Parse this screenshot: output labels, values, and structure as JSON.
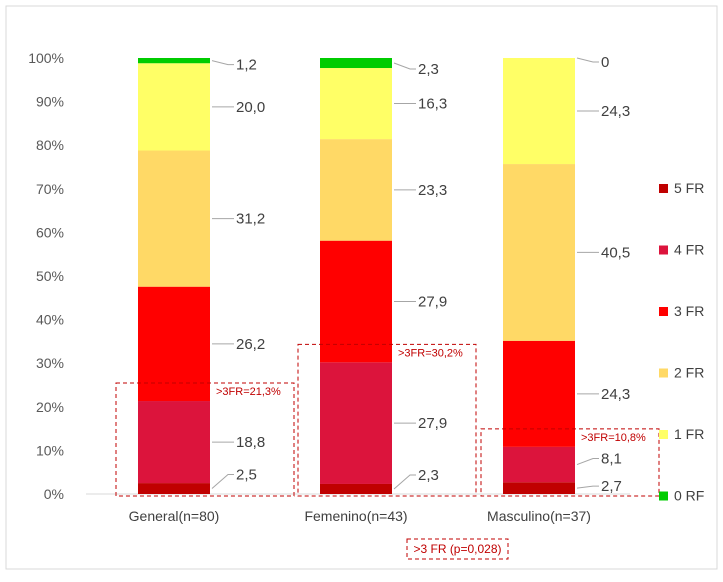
{
  "chart_data": {
    "type": "bar",
    "stacked": true,
    "percent": true,
    "categories": [
      "General(n=80)",
      "Femenino(n=43)",
      "Masculino(n=37)"
    ],
    "y_ticks": [
      "0%",
      "10%",
      "20%",
      "30%",
      "40%",
      "50%",
      "60%",
      "70%",
      "80%",
      "90%",
      "100%"
    ],
    "ylim": [
      0,
      100
    ],
    "grid": false,
    "legend_position": "right",
    "series": [
      {
        "name": "5 FR",
        "color": "#C00000",
        "values": [
          2.5,
          2.3,
          2.7
        ],
        "labels": [
          "2,5",
          "2,3",
          "2,7"
        ]
      },
      {
        "name": "4 FR",
        "color": "#DC143C",
        "values": [
          18.8,
          27.9,
          8.1
        ],
        "labels": [
          "18,8",
          "27,9",
          "8,1"
        ]
      },
      {
        "name": "3 FR",
        "color": "#FF0000",
        "values": [
          26.2,
          27.9,
          24.3
        ],
        "labels": [
          "26,2",
          "27,9",
          "24,3"
        ]
      },
      {
        "name": "2 FR",
        "color": "#FFD966",
        "values": [
          31.2,
          23.3,
          40.5
        ],
        "labels": [
          "31,2",
          "23,3",
          "40,5"
        ]
      },
      {
        "name": "1 FR",
        "color": "#FFFF66",
        "values": [
          20.0,
          16.3,
          24.3
        ],
        "labels": [
          "20,0",
          "16,3",
          "24,3"
        ]
      },
      {
        "name": "0 RF",
        "color": "#00CC00",
        "values": [
          1.2,
          2.3,
          0
        ],
        "labels": [
          "1,2",
          "2,3",
          "0"
        ]
      }
    ],
    "annotations": [
      {
        "text": ">3FR=21,3%",
        "category": 0
      },
      {
        "text": ">3FR=30,2%",
        "category": 1
      },
      {
        "text": ">3FR=10,8%",
        "category": 2
      }
    ],
    "footnote": ">3 FR (p=0,028)",
    "annotation_color": "#C00000"
  }
}
